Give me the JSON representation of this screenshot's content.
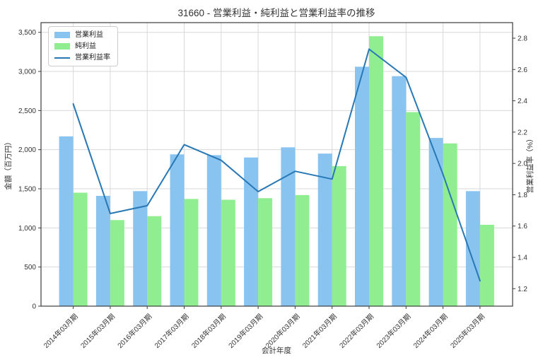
{
  "title": "31660 - 営業利益・純利益と営業利益率の推移",
  "axes": {
    "x_title": "会計年度",
    "y_left_title": "金額（百万円）",
    "y_right_title": "営業利益率（%）",
    "y_left_tick_labels": [
      "0",
      "500",
      "1,000",
      "1,500",
      "2,000",
      "2,500",
      "3,000",
      "3,500"
    ],
    "y_right_tick_labels": [
      "1.2",
      "1.4",
      "1.6",
      "1.8",
      "2.0",
      "2.2",
      "2.4",
      "2.6",
      "2.8"
    ]
  },
  "legend": {
    "items": [
      "営業利益",
      "純利益",
      "営業利益率"
    ]
  },
  "colors": {
    "bar_operating_profit": "#89C4F0",
    "bar_net_profit": "#90EE90",
    "line_margin": "#2878B5",
    "grid": "#d8d8d8",
    "spine": "#3d3d3d",
    "text": "#333333"
  },
  "chart_data": {
    "type": "bar",
    "title": "31660 - 営業利益・純利益と営業利益率の推移",
    "xlabel": "会計年度",
    "ylabel_left": "金額（百万円）",
    "ylabel_right": "営業利益率（%）",
    "ylim_left": [
      0,
      3500
    ],
    "ytick_step_left": 500,
    "ylim_right": [
      1.2,
      2.8
    ],
    "ytick_step_right": 0.2,
    "grid": true,
    "legend_position": "upper-left",
    "categories": [
      "2014年03月期",
      "2015年03月期",
      "2016年03月期",
      "2017年03月期",
      "2018年03月期",
      "2019年03月期",
      "2020年03月期",
      "2021年03月期",
      "2022年03月期",
      "2023年03月期",
      "2024年03月期",
      "2025年03月期"
    ],
    "series": [
      {
        "name": "営業利益",
        "type": "bar",
        "axis": "left",
        "color": "#89C4F0",
        "values": [
          2170,
          1410,
          1470,
          1940,
          1930,
          1900,
          2030,
          1950,
          3060,
          2940,
          2150,
          1470
        ]
      },
      {
        "name": "純利益",
        "type": "bar",
        "axis": "left",
        "color": "#90EE90",
        "values": [
          1450,
          1100,
          1150,
          1370,
          1360,
          1380,
          1420,
          1790,
          3450,
          2480,
          2080,
          1040
        ]
      },
      {
        "name": "営業利益率",
        "type": "line",
        "axis": "right",
        "color": "#2878B5",
        "values": [
          2.38,
          1.68,
          1.73,
          2.12,
          2.02,
          1.82,
          1.95,
          1.9,
          2.73,
          2.55,
          1.93,
          1.25
        ]
      }
    ]
  }
}
